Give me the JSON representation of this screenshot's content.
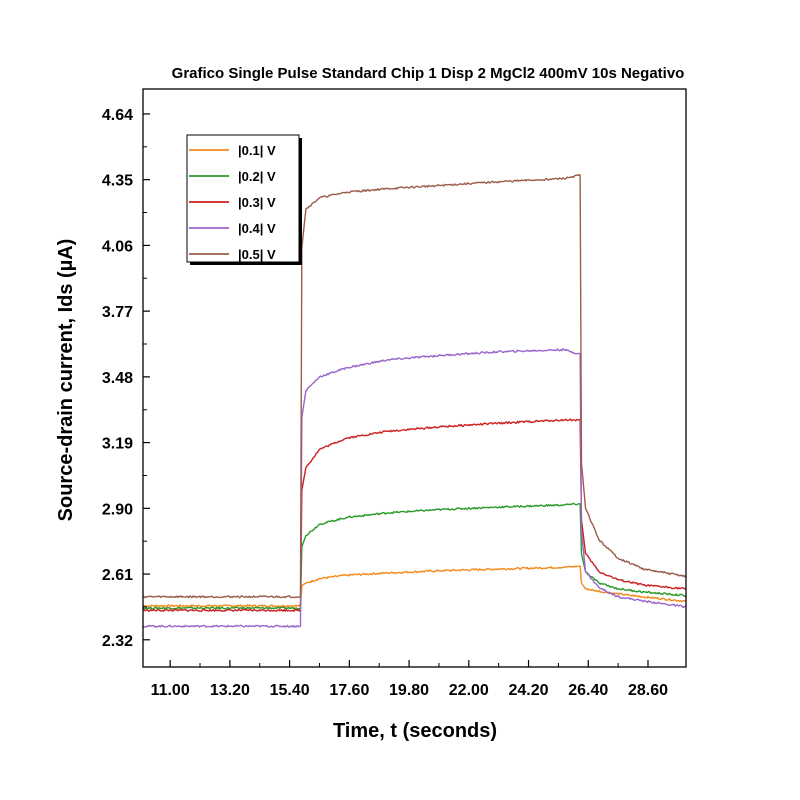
{
  "chart_data": {
    "type": "line",
    "title": "Grafico Single Pulse Standard Chip 1 Disp 2 MgCl2 400mV 10s Negativo",
    "xlabel": "Time, t (seconds)",
    "ylabel": "Source-drain current, Ids (µA)",
    "xlim": [
      10.0,
      30.0
    ],
    "ylim": [
      2.2,
      4.75
    ],
    "x_ticks": [
      "11.00",
      "13.20",
      "15.40",
      "17.60",
      "19.80",
      "22.00",
      "24.20",
      "26.40",
      "28.60"
    ],
    "x_tick_values": [
      11.0,
      13.2,
      15.4,
      17.6,
      19.8,
      22.0,
      24.2,
      26.4,
      28.6
    ],
    "y_ticks": [
      "2.32",
      "2.61",
      "2.90",
      "3.19",
      "3.48",
      "3.77",
      "4.06",
      "4.35",
      "4.64"
    ],
    "y_tick_values": [
      2.32,
      2.61,
      2.9,
      3.19,
      3.48,
      3.77,
      4.06,
      4.35,
      4.64
    ],
    "grid": false,
    "legend_position": "top-left",
    "series": [
      {
        "name": "|0.1| V",
        "color": "#f28a1c",
        "x": [
          10.0,
          15.8,
          15.85,
          16.0,
          16.5,
          17.5,
          19.0,
          21.0,
          23.0,
          25.5,
          26.1,
          26.15,
          26.3,
          27.0,
          28.0,
          30.0
        ],
        "y": [
          2.47,
          2.47,
          2.56,
          2.57,
          2.59,
          2.605,
          2.615,
          2.625,
          2.632,
          2.64,
          2.645,
          2.57,
          2.545,
          2.53,
          2.515,
          2.49
        ]
      },
      {
        "name": "|0.2| V",
        "color": "#2a9a2a",
        "x": [
          10.0,
          15.8,
          15.85,
          16.0,
          16.5,
          17.5,
          19.0,
          21.0,
          23.0,
          25.5,
          26.1,
          26.15,
          26.3,
          26.8,
          27.5,
          28.5,
          30.0
        ],
        "y": [
          2.46,
          2.46,
          2.73,
          2.78,
          2.83,
          2.86,
          2.88,
          2.895,
          2.905,
          2.915,
          2.92,
          2.7,
          2.62,
          2.57,
          2.545,
          2.53,
          2.515
        ]
      },
      {
        "name": "|0.3| V",
        "color": "#cc1f1f",
        "x": [
          10.0,
          15.8,
          15.85,
          16.0,
          16.5,
          17.5,
          19.0,
          21.0,
          23.0,
          25.5,
          26.1,
          26.15,
          26.3,
          26.8,
          27.5,
          28.5,
          30.0
        ],
        "y": [
          2.45,
          2.45,
          2.98,
          3.08,
          3.16,
          3.21,
          3.24,
          3.26,
          3.275,
          3.29,
          3.29,
          2.85,
          2.7,
          2.62,
          2.585,
          2.56,
          2.545
        ]
      },
      {
        "name": "|0.4| V",
        "color": "#9966cc",
        "x": [
          10.0,
          15.8,
          15.85,
          16.0,
          16.5,
          17.5,
          19.0,
          21.0,
          23.0,
          25.5,
          26.1,
          26.15,
          26.3,
          26.8,
          27.5,
          28.5,
          30.0
        ],
        "y": [
          2.38,
          2.38,
          3.3,
          3.42,
          3.48,
          3.52,
          3.555,
          3.575,
          3.59,
          3.6,
          3.58,
          2.8,
          2.62,
          2.55,
          2.51,
          2.49,
          2.465
        ]
      },
      {
        "name": "|0.5| V",
        "color": "#9c5c4a",
        "x": [
          10.0,
          15.8,
          15.85,
          16.0,
          16.5,
          17.5,
          19.0,
          21.0,
          23.0,
          25.5,
          26.1,
          26.15,
          26.3,
          26.8,
          27.5,
          28.5,
          30.0
        ],
        "y": [
          2.51,
          2.51,
          4.05,
          4.22,
          4.27,
          4.295,
          4.31,
          4.325,
          4.34,
          4.355,
          4.37,
          3.1,
          2.9,
          2.76,
          2.68,
          2.63,
          2.6
        ]
      }
    ]
  }
}
